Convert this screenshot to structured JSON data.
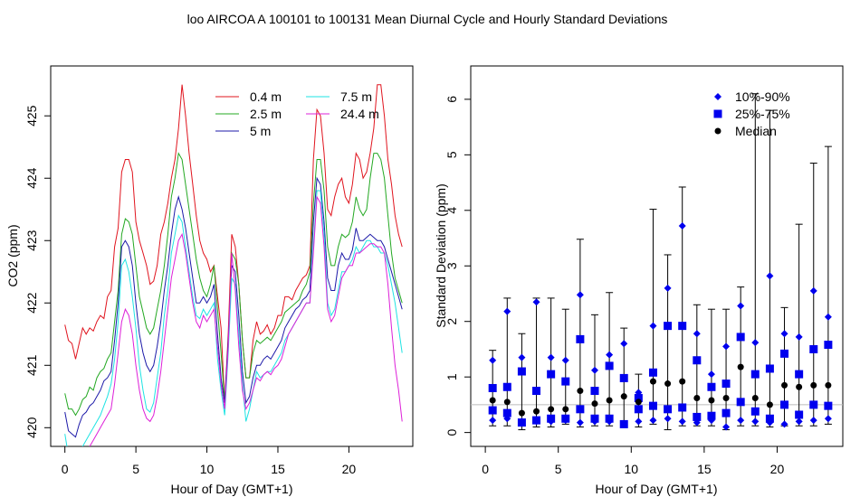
{
  "title": "loo   AIRCOA A   100101 to 100131   Mean Diurnal Cycle and Hourly Standard Deviations",
  "chart_data": [
    {
      "type": "line",
      "xlabel": "Hour of Day (GMT+1)",
      "ylabel": "CO2 (ppm)",
      "xlim": [
        -1,
        24.5
      ],
      "ylim": [
        419.7,
        425.8
      ],
      "x_ticks": [
        0,
        5,
        10,
        15,
        20
      ],
      "y_ticks": [
        420,
        421,
        422,
        423,
        424,
        425
      ],
      "legend_position": "top-right",
      "x": [
        0,
        0.25,
        0.5,
        0.75,
        1,
        1.25,
        1.5,
        1.75,
        2,
        2.25,
        2.5,
        2.75,
        3,
        3.25,
        3.5,
        3.75,
        4,
        4.25,
        4.5,
        4.75,
        5,
        5.25,
        5.5,
        5.75,
        6,
        6.25,
        6.5,
        6.75,
        7,
        7.25,
        7.5,
        7.75,
        8,
        8.25,
        8.5,
        8.75,
        9,
        9.25,
        9.5,
        9.75,
        10,
        10.25,
        10.5,
        10.75,
        11,
        11.25,
        11.5,
        11.75,
        12,
        12.25,
        12.5,
        12.75,
        13,
        13.25,
        13.5,
        13.75,
        14,
        14.25,
        14.5,
        14.75,
        15,
        15.25,
        15.5,
        15.75,
        16,
        16.25,
        16.5,
        16.75,
        17,
        17.25,
        17.5,
        17.75,
        18,
        18.25,
        18.5,
        18.75,
        19,
        19.25,
        19.5,
        19.75,
        20,
        20.25,
        20.5,
        20.75,
        21,
        21.25,
        21.5,
        21.75,
        22,
        22.25,
        22.5,
        22.75,
        23,
        23.25,
        23.5,
        23.75
      ],
      "series": [
        {
          "name": "0.4 m",
          "color": "#e0141e",
          "values": [
            421.65,
            421.4,
            421.35,
            421.1,
            421.35,
            421.6,
            421.5,
            421.6,
            421.55,
            421.7,
            421.8,
            421.75,
            422.1,
            422.2,
            422.9,
            423.2,
            424.1,
            424.3,
            424.3,
            424.1,
            423.3,
            423.0,
            422.8,
            422.6,
            422.3,
            422.35,
            422.6,
            423.1,
            423.3,
            423.6,
            424.0,
            424.3,
            424.8,
            425.5,
            425.0,
            424.4,
            423.9,
            423.4,
            423.0,
            422.8,
            422.7,
            422.5,
            422.6,
            422.1,
            421.6,
            420.4,
            421.5,
            423.1,
            422.9,
            422.3,
            421.4,
            420.8,
            420.8,
            421.4,
            421.7,
            421.5,
            421.55,
            421.65,
            421.5,
            421.6,
            421.8,
            421.8,
            422.1,
            422.1,
            422.05,
            422.2,
            422.3,
            422.4,
            422.45,
            422.6,
            424.3,
            425.1,
            425.0,
            424.4,
            423.5,
            423.4,
            423.7,
            423.9,
            424.0,
            423.7,
            423.6,
            423.9,
            424.4,
            424.3,
            424.0,
            424.1,
            424.4,
            424.8,
            425.5,
            425.5,
            425.0,
            424.3,
            423.9,
            423.4,
            423.1,
            422.9
          ]
        },
        {
          "name": "2.5 m",
          "color": "#23a822",
          "values": [
            420.55,
            420.3,
            420.3,
            420.2,
            420.3,
            420.45,
            420.5,
            420.65,
            420.6,
            420.8,
            420.9,
            420.95,
            421.1,
            421.2,
            421.7,
            422.2,
            423.1,
            423.35,
            423.3,
            423.1,
            422.6,
            422.1,
            421.85,
            421.6,
            421.5,
            421.6,
            421.9,
            422.2,
            422.6,
            423.1,
            423.7,
            424.0,
            424.4,
            424.3,
            423.9,
            423.5,
            423.1,
            422.7,
            422.4,
            422.2,
            422.1,
            422.3,
            422.6,
            421.9,
            421.2,
            420.4,
            421.3,
            422.8,
            422.7,
            422.3,
            421.4,
            420.8,
            420.8,
            421.2,
            421.4,
            421.35,
            421.4,
            421.45,
            421.4,
            421.5,
            421.6,
            421.7,
            421.85,
            421.9,
            421.95,
            422.0,
            422.05,
            422.2,
            422.3,
            422.5,
            423.6,
            424.3,
            424.3,
            423.8,
            422.9,
            422.6,
            422.6,
            422.9,
            423.1,
            423.05,
            423.1,
            423.3,
            423.7,
            423.5,
            423.4,
            423.5,
            424.0,
            424.4,
            424.4,
            424.3,
            424.0,
            423.4,
            422.8,
            422.4,
            422.2,
            422.0
          ]
        },
        {
          "name": "5 m",
          "color": "#1c19a8",
          "values": [
            420.25,
            419.95,
            419.9,
            419.85,
            420.05,
            420.2,
            420.25,
            420.35,
            420.4,
            420.5,
            420.6,
            420.75,
            420.8,
            420.9,
            421.4,
            422.0,
            422.9,
            423.0,
            422.9,
            422.6,
            422.0,
            421.5,
            421.2,
            421.0,
            420.9,
            421.0,
            421.3,
            421.7,
            422.2,
            422.6,
            423.1,
            423.5,
            423.7,
            423.5,
            423.2,
            422.8,
            422.4,
            422.0,
            422.0,
            422.1,
            422.0,
            422.1,
            422.3,
            421.5,
            420.8,
            420.4,
            421.4,
            422.6,
            422.5,
            421.8,
            420.9,
            420.4,
            420.5,
            420.8,
            421.0,
            421.0,
            421.1,
            421.15,
            421.1,
            421.2,
            421.3,
            421.4,
            421.6,
            421.7,
            421.8,
            421.9,
            421.95,
            422.05,
            422.1,
            422.2,
            423.3,
            424.0,
            423.9,
            423.3,
            422.4,
            422.2,
            422.2,
            422.6,
            422.8,
            422.7,
            422.7,
            422.85,
            423.2,
            423.0,
            423.0,
            423.05,
            423.1,
            423.05,
            423.0,
            423.0,
            422.9,
            422.7,
            422.5,
            422.3,
            422.1,
            421.9
          ]
        },
        {
          "name": "7.5 m",
          "color": "#1ee3e3",
          "values": [
            419.9,
            419.55,
            419.45,
            419.5,
            419.6,
            419.7,
            419.8,
            419.9,
            420.0,
            420.1,
            420.2,
            420.35,
            420.5,
            420.7,
            421.1,
            421.7,
            422.6,
            422.7,
            422.5,
            422.1,
            421.6,
            421.0,
            420.6,
            420.3,
            420.25,
            420.4,
            420.8,
            421.2,
            421.8,
            422.2,
            422.8,
            423.1,
            423.4,
            423.3,
            422.9,
            422.5,
            422.1,
            421.8,
            421.75,
            421.9,
            421.8,
            421.9,
            422.0,
            421.1,
            420.6,
            420.2,
            421.2,
            422.4,
            422.3,
            421.5,
            420.7,
            420.1,
            420.3,
            420.6,
            420.9,
            420.8,
            420.85,
            420.9,
            420.9,
            421.0,
            421.1,
            421.2,
            421.4,
            421.5,
            421.6,
            421.7,
            421.8,
            421.9,
            422.0,
            422.0,
            422.9,
            423.8,
            423.8,
            423.1,
            422.0,
            421.8,
            421.9,
            422.2,
            422.5,
            422.5,
            422.6,
            422.7,
            422.9,
            422.8,
            422.9,
            423.0,
            423.0,
            422.9,
            422.9,
            422.8,
            422.8,
            422.6,
            422.3,
            422.0,
            421.6,
            421.2
          ]
        },
        {
          "name": "24.4 m",
          "color": "#dd20d8",
          "values": [
            419.6,
            419.3,
            419.25,
            419.3,
            419.4,
            419.5,
            419.6,
            419.7,
            419.8,
            419.9,
            420.0,
            420.1,
            420.2,
            420.3,
            420.7,
            421.2,
            421.7,
            421.9,
            421.8,
            421.5,
            421.0,
            420.6,
            420.3,
            420.15,
            420.1,
            420.2,
            420.5,
            420.9,
            421.4,
            421.9,
            422.4,
            422.7,
            423.0,
            423.1,
            422.8,
            422.4,
            422.0,
            421.7,
            421.6,
            421.8,
            421.7,
            421.8,
            421.9,
            421.3,
            420.7,
            420.3,
            421.3,
            422.8,
            422.2,
            421.3,
            420.6,
            420.3,
            420.4,
            420.6,
            420.8,
            420.75,
            420.85,
            420.9,
            420.85,
            420.95,
            421.0,
            421.1,
            421.3,
            421.5,
            421.6,
            421.7,
            421.8,
            421.9,
            422.0,
            422.0,
            422.8,
            423.7,
            423.6,
            422.9,
            421.9,
            421.7,
            421.8,
            422.1,
            422.4,
            422.5,
            422.6,
            422.6,
            422.8,
            422.8,
            422.85,
            422.9,
            422.95,
            422.95,
            422.9,
            422.9,
            422.8,
            422.3,
            421.6,
            421.0,
            420.6,
            420.1
          ]
        }
      ]
    },
    {
      "type": "scatter",
      "xlabel": "Hour of Day (GMT+1)",
      "ylabel": "Standard Deviation (ppm)",
      "xlim": [
        -1,
        24.5
      ],
      "ylim": [
        -0.25,
        6.6
      ],
      "x_ticks": [
        0,
        5,
        10,
        15,
        20
      ],
      "y_ticks": [
        0,
        1,
        2,
        3,
        4,
        5,
        6
      ],
      "reference_line": 0.5,
      "legend_position": "top-right",
      "x": [
        0.5,
        1.5,
        2.5,
        3.5,
        4.5,
        5.5,
        6.5,
        7.5,
        8.5,
        9.5,
        10.5,
        11.5,
        12.5,
        13.5,
        14.5,
        15.5,
        16.5,
        17.5,
        18.5,
        19.5,
        20.5,
        21.5,
        22.5,
        23.5
      ],
      "whisker_low": [
        0.12,
        0.12,
        0.05,
        0.1,
        0.1,
        0.15,
        0.1,
        0.12,
        0.12,
        0.12,
        0.1,
        0.15,
        0.05,
        0.12,
        0.12,
        0.12,
        0.05,
        0.12,
        0.12,
        0.1,
        0.12,
        0.12,
        0.12,
        0.15
      ],
      "whisker_high": [
        1.48,
        2.42,
        1.78,
        2.42,
        2.42,
        2.22,
        3.48,
        2.12,
        2.52,
        1.88,
        1.05,
        4.02,
        3.2,
        4.42,
        2.3,
        2.22,
        2.22,
        2.62,
        6.1,
        5.8,
        2.25,
        3.75,
        4.85,
        5.15
      ],
      "series": [
        {
          "name": "10%-90%",
          "marker": "diamond",
          "color": "#0000ee",
          "values_low": [
            0.22,
            0.25,
            0.2,
            0.2,
            0.2,
            0.22,
            0.18,
            0.2,
            0.2,
            0.15,
            0.2,
            0.22,
            0.25,
            0.2,
            0.18,
            0.22,
            0.1,
            0.22,
            0.2,
            0.18,
            0.15,
            0.2,
            0.22,
            0.25
          ],
          "values_high": [
            1.3,
            2.18,
            1.35,
            2.35,
            1.35,
            1.3,
            2.48,
            1.12,
            1.4,
            1.6,
            0.72,
            1.92,
            2.6,
            3.72,
            1.78,
            1.05,
            1.55,
            2.28,
            1.62,
            2.82,
            1.78,
            1.72,
            2.55,
            2.08
          ]
        },
        {
          "name": "25%-75%",
          "marker": "square",
          "color": "#0000ee",
          "values_low": [
            0.4,
            0.35,
            0.18,
            0.22,
            0.25,
            0.25,
            0.42,
            0.25,
            0.25,
            0.15,
            0.42,
            0.48,
            0.42,
            0.45,
            0.28,
            0.3,
            0.35,
            0.55,
            0.38,
            0.25,
            0.5,
            0.32,
            0.5,
            0.48
          ],
          "values_high": [
            0.8,
            0.82,
            1.1,
            0.75,
            1.05,
            0.92,
            1.68,
            0.75,
            1.2,
            0.98,
            0.62,
            1.08,
            1.92,
            1.92,
            1.3,
            0.82,
            0.88,
            1.72,
            1.05,
            1.15,
            1.42,
            1.05,
            1.5,
            1.58
          ]
        },
        {
          "name": "Median",
          "marker": "circle",
          "color": "#000000",
          "values": [
            0.58,
            0.55,
            0.35,
            0.38,
            0.42,
            0.42,
            0.75,
            0.52,
            0.58,
            0.65,
            0.55,
            0.92,
            0.88,
            0.92,
            0.62,
            0.58,
            0.62,
            1.18,
            0.62,
            0.5,
            0.85,
            0.82,
            0.85,
            0.85
          ]
        }
      ]
    }
  ]
}
